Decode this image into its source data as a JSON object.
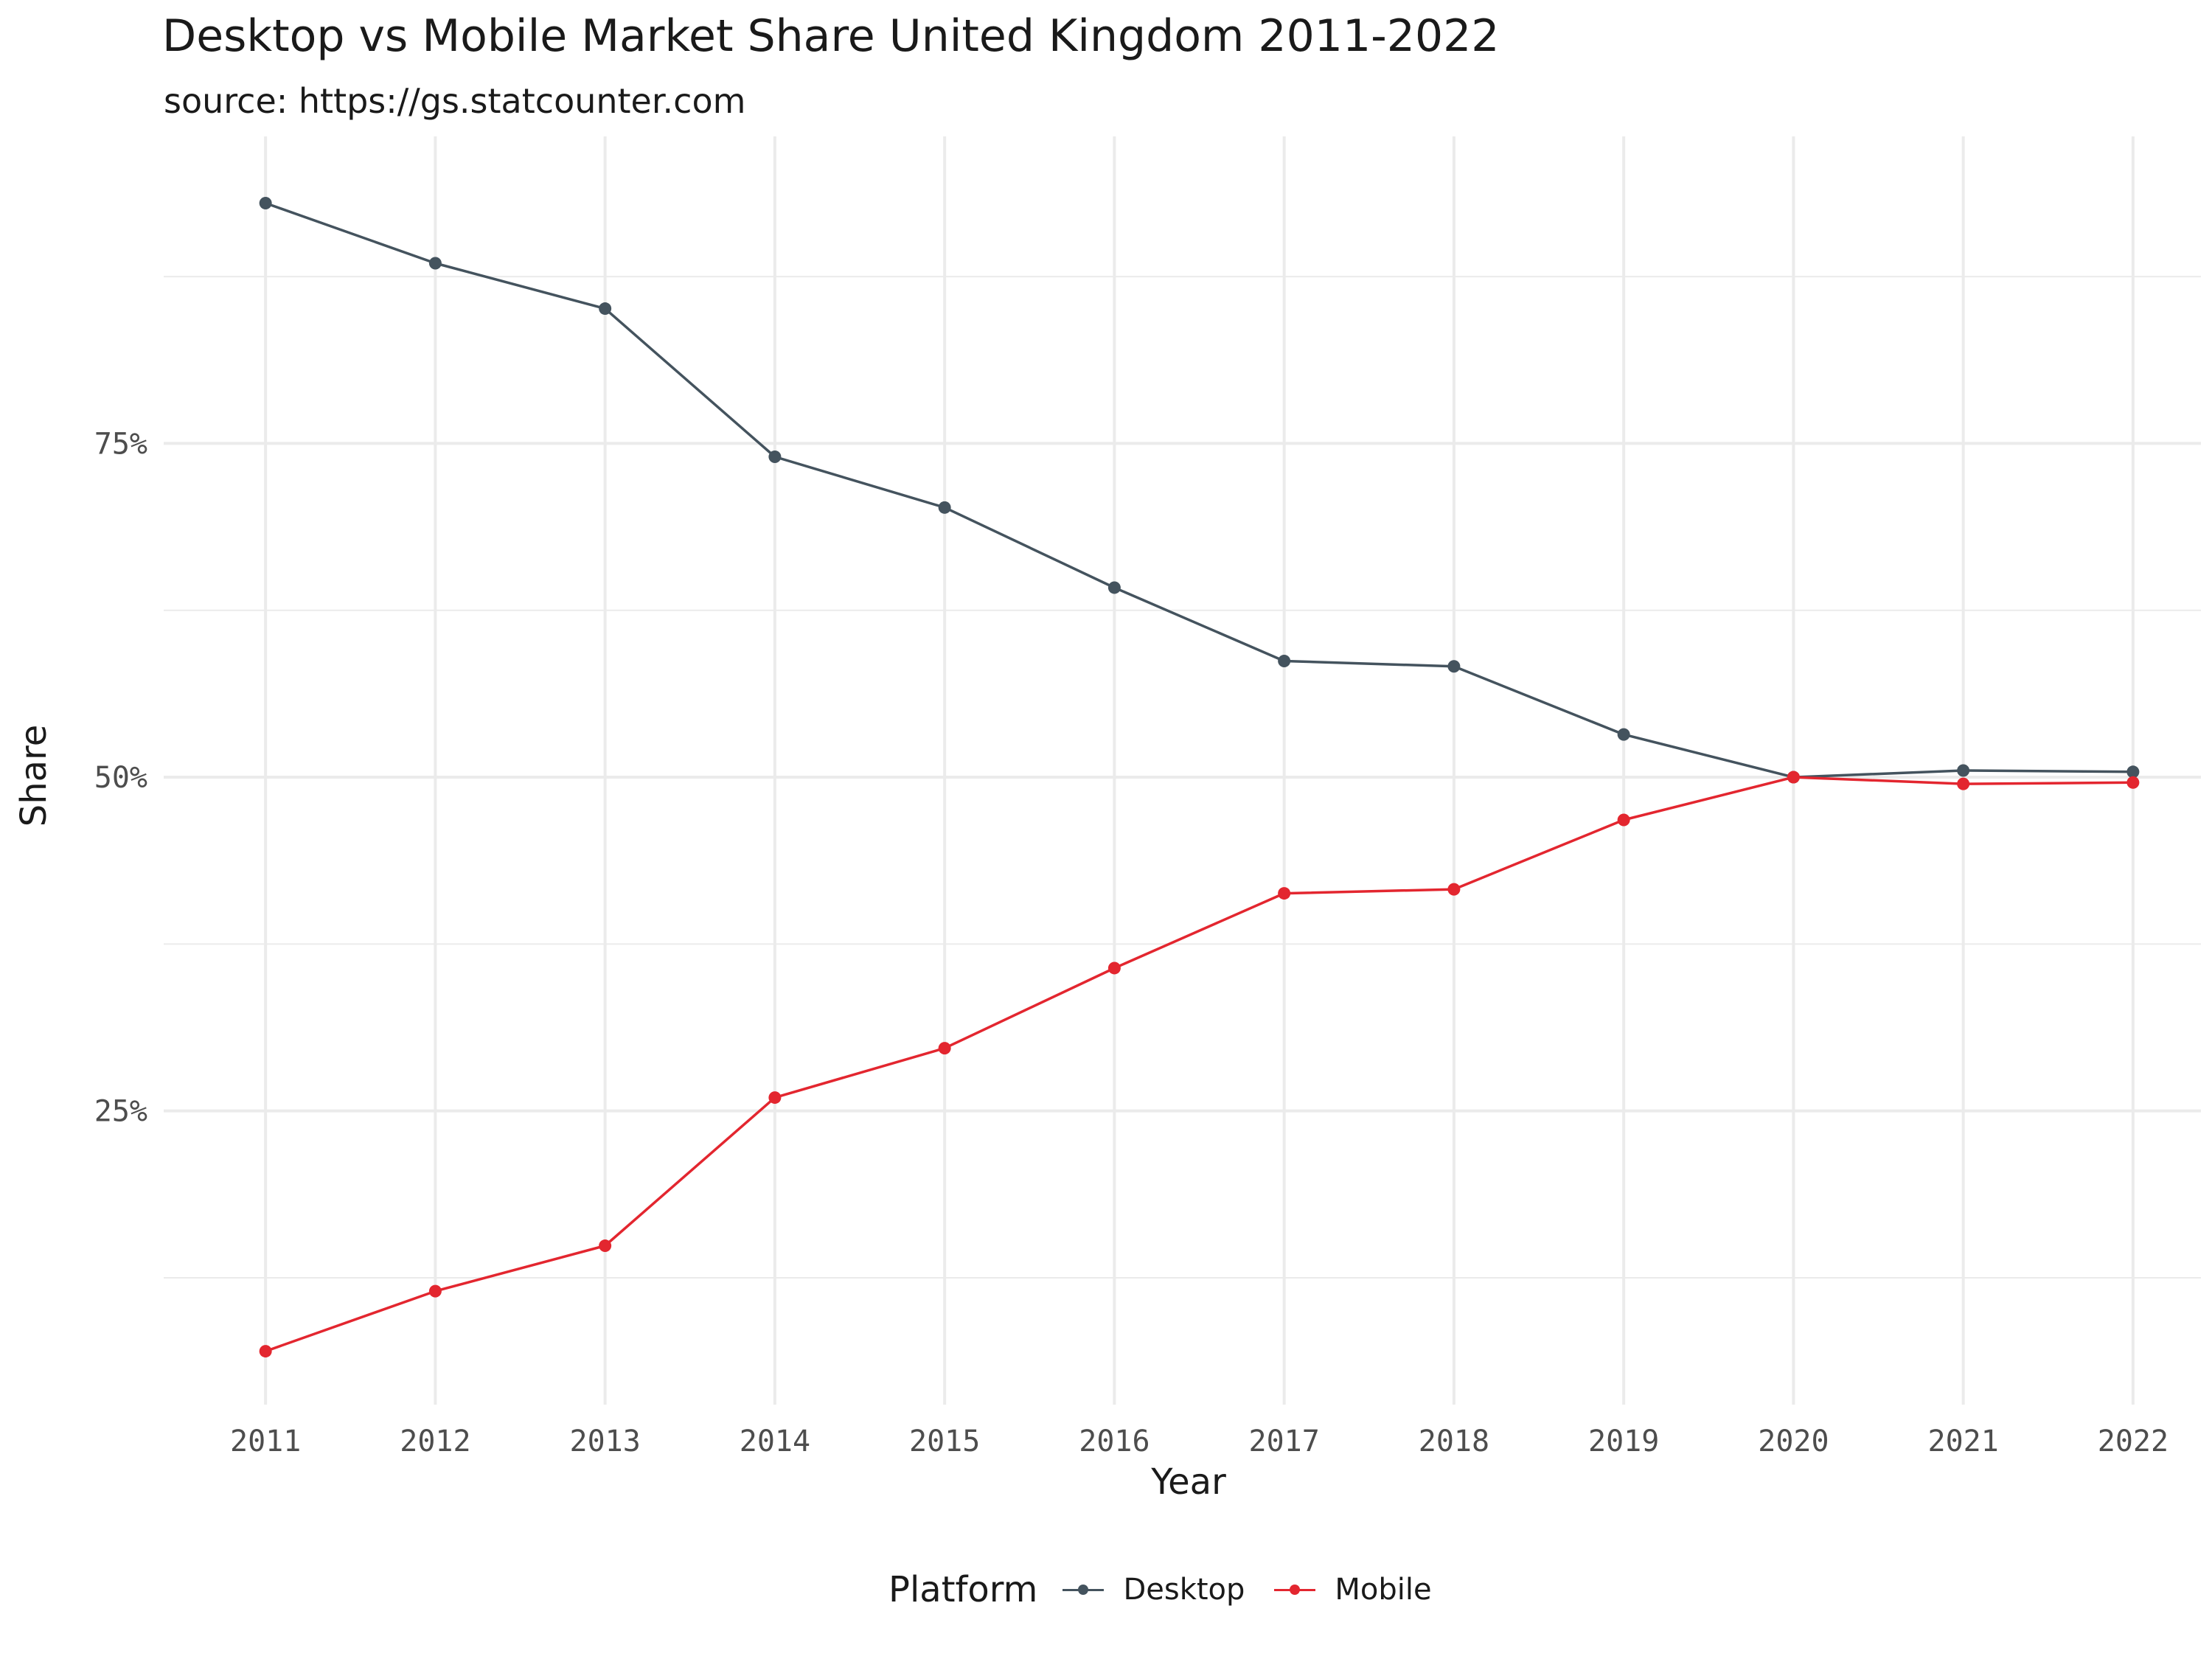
{
  "chart_data": {
    "type": "line",
    "title": "Desktop vs Mobile Market Share United Kingdom 2011-2022",
    "subtitle": "source: https://gs.statcounter.com",
    "xlabel": "Year",
    "ylabel": "Share",
    "x": [
      2011,
      2012,
      2013,
      2014,
      2015,
      2016,
      2017,
      2018,
      2019,
      2020,
      2021,
      2022
    ],
    "y_ticks": [
      25,
      50,
      75
    ],
    "y_tick_labels": [
      "25%",
      "50%",
      "75%"
    ],
    "ylim": [
      3,
      98
    ],
    "xlim": [
      2010.4,
      2022.4
    ],
    "grid": true,
    "legend": {
      "title": "Platform",
      "position": "bottom"
    },
    "series": [
      {
        "name": "Desktop",
        "color": "#44535E",
        "values": [
          93.0,
          88.5,
          85.1,
          74.0,
          70.2,
          64.2,
          58.7,
          58.3,
          53.2,
          50.0,
          50.5,
          50.4
        ]
      },
      {
        "name": "Mobile",
        "color": "#E3262F",
        "values": [
          7.0,
          11.5,
          14.9,
          26.0,
          29.7,
          35.7,
          41.3,
          41.6,
          46.8,
          50.0,
          49.5,
          49.6
        ]
      }
    ]
  }
}
